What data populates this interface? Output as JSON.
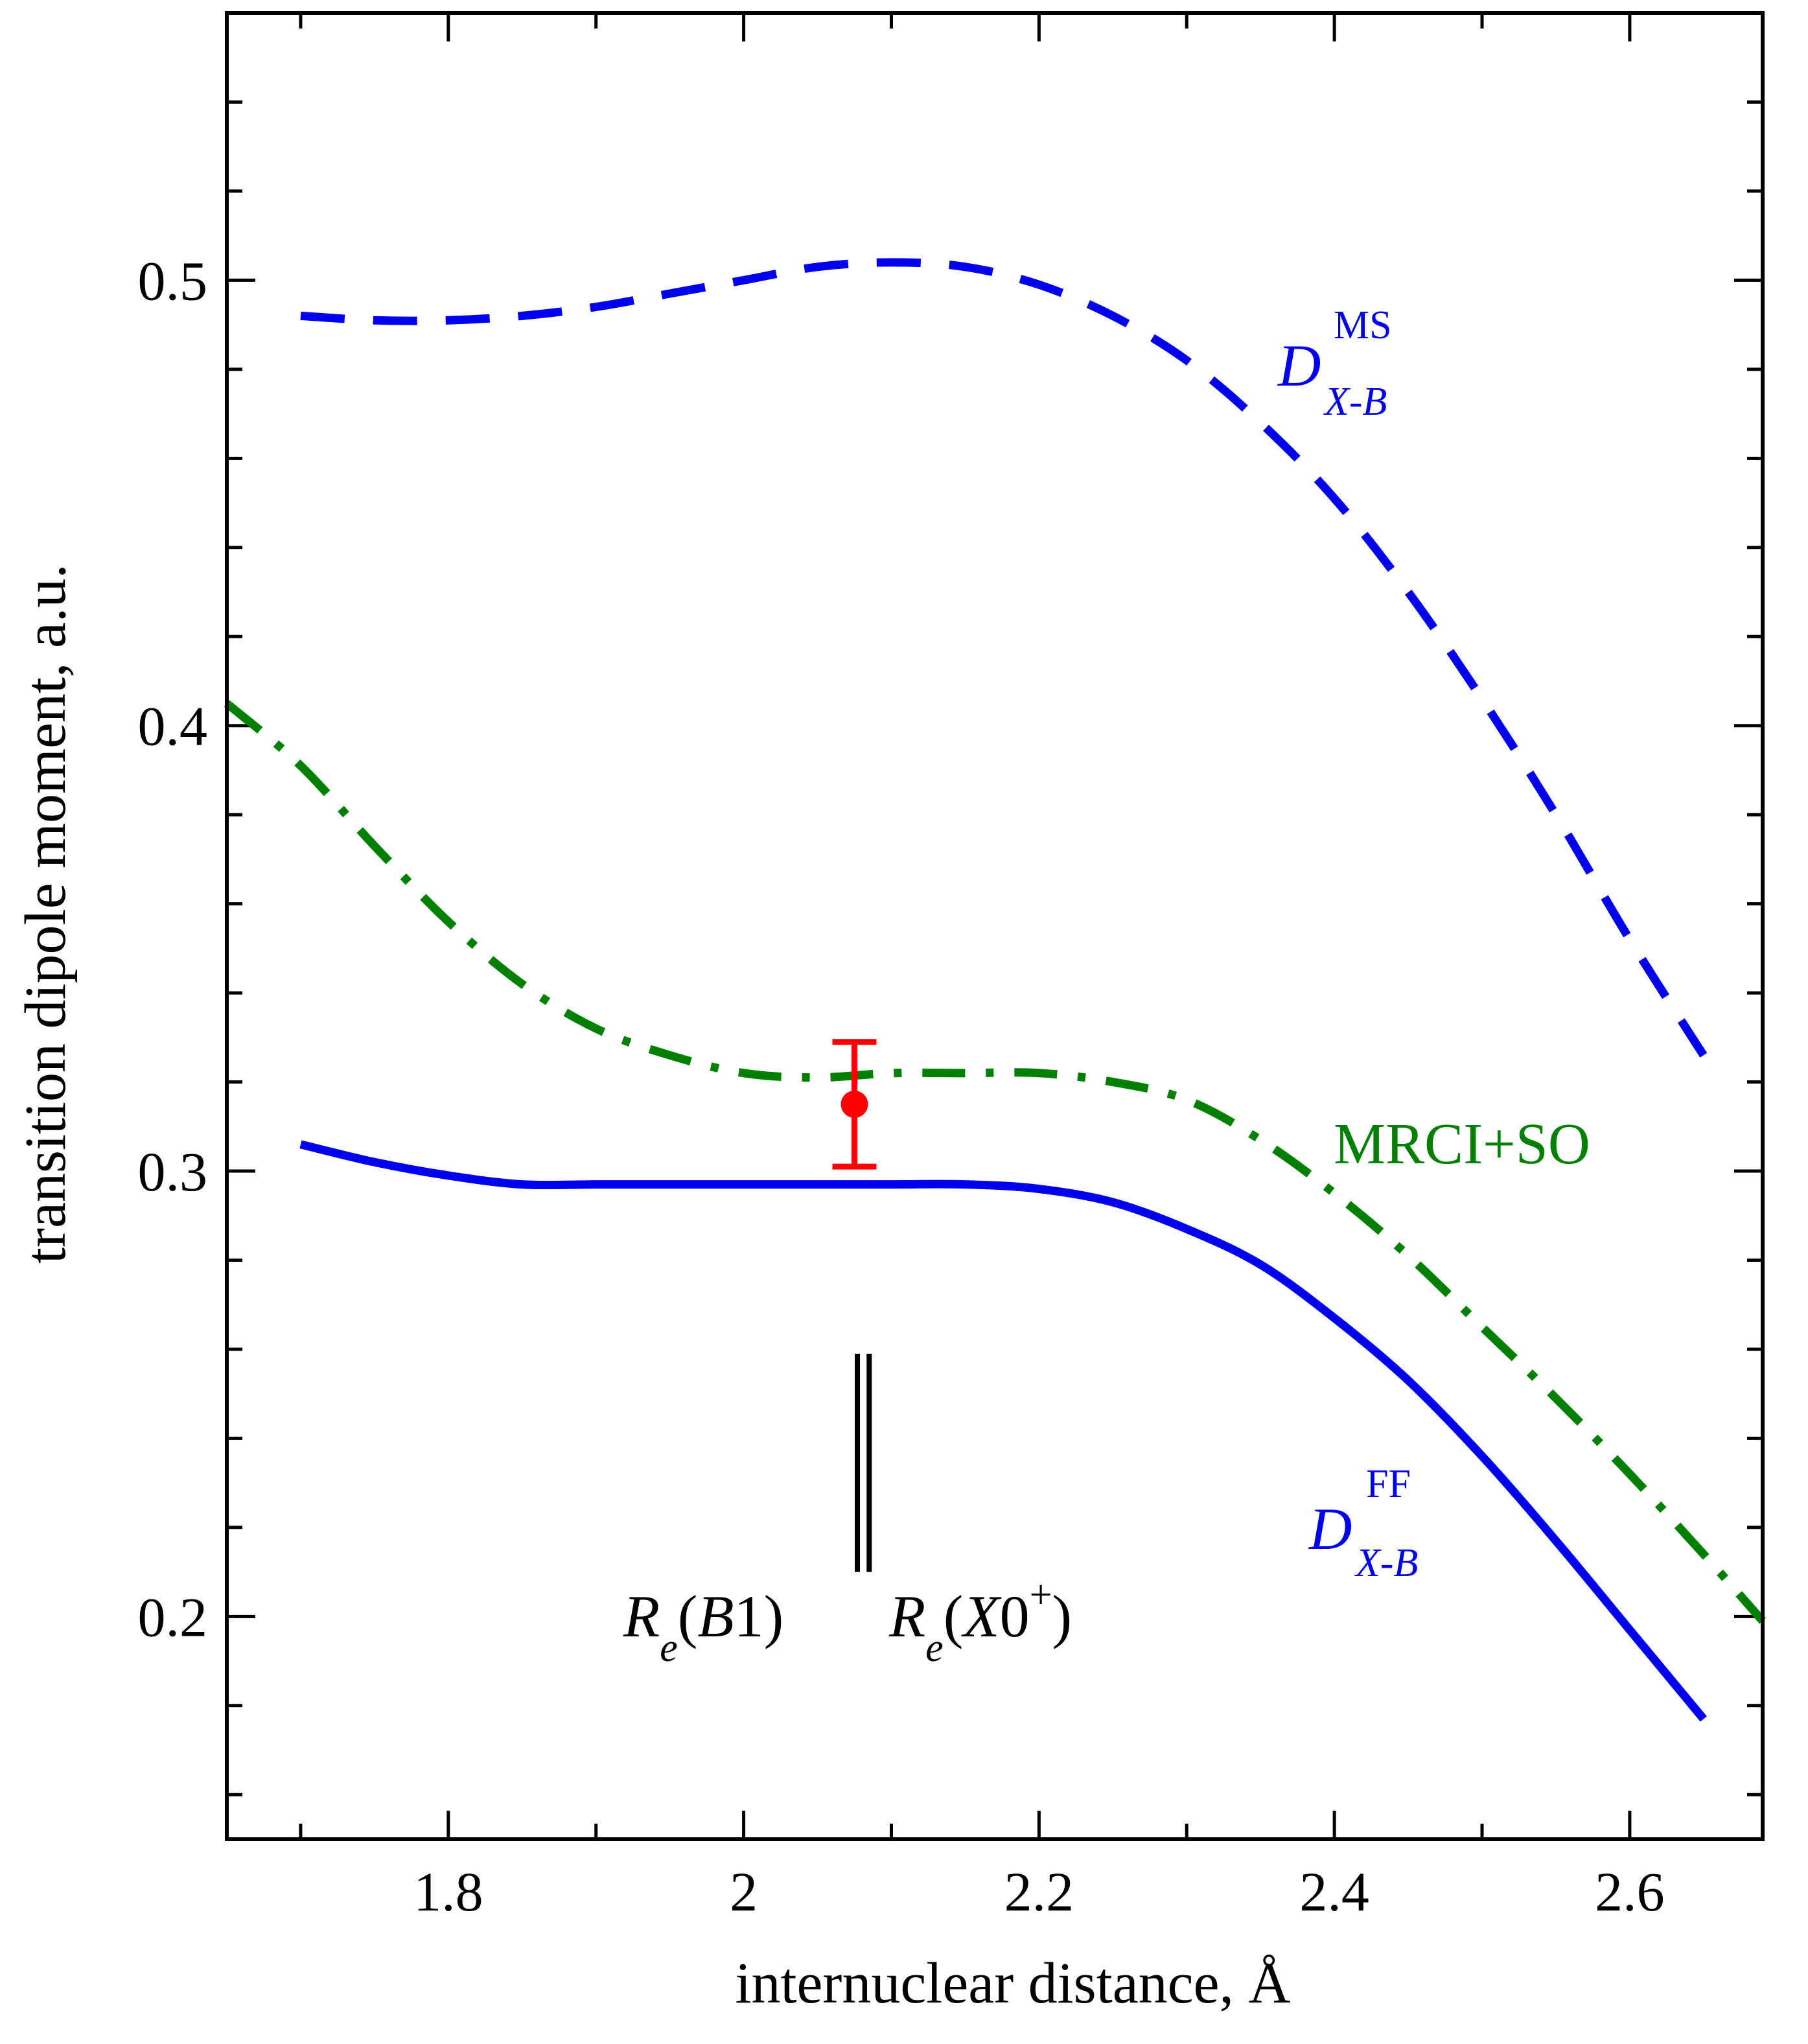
{
  "chart_data": {
    "type": "line",
    "xlabel": "internuclear distance, Å",
    "ylabel": "transition dipole moment, a.u.",
    "xlim": [
      1.65,
      2.69
    ],
    "ylim": [
      0.15,
      0.56
    ],
    "x_ticks": [
      1.8,
      2.0,
      2.2,
      2.4,
      2.6
    ],
    "x_tick_labels": [
      "1.8",
      "2",
      "2.2",
      "2.4",
      "2.6"
    ],
    "x_minor_step": 0.1,
    "y_ticks": [
      0.2,
      0.3,
      0.4,
      0.5
    ],
    "y_tick_labels": [
      "0.2",
      "0.3",
      "0.4",
      "0.5"
    ],
    "y_minor_step": 0.02,
    "series": [
      {
        "name": "D_X-B^MS",
        "label_main": "D",
        "label_sup": "MS",
        "label_sub": "X-B",
        "style": "dashed",
        "color": "#0000ee",
        "x": [
          1.7,
          1.75,
          1.8,
          1.85,
          1.9,
          1.95,
          2.0,
          2.05,
          2.1,
          2.15,
          2.2,
          2.25,
          2.3,
          2.35,
          2.4,
          2.45,
          2.5,
          2.55,
          2.6,
          2.65
        ],
        "y": [
          0.492,
          0.491,
          0.491,
          0.492,
          0.494,
          0.497,
          0.5,
          0.503,
          0.504,
          0.503,
          0.499,
          0.492,
          0.482,
          0.468,
          0.451,
          0.43,
          0.406,
          0.38,
          0.352,
          0.326
        ]
      },
      {
        "name": "MRCI+SO",
        "label_main": "MRCI+SO",
        "style": "dashdot",
        "color": "#008000",
        "x": [
          1.65,
          1.7,
          1.75,
          1.8,
          1.85,
          1.9,
          1.95,
          2.0,
          2.05,
          2.1,
          2.15,
          2.2,
          2.25,
          2.3,
          2.35,
          2.4,
          2.45,
          2.5,
          2.55,
          2.6,
          2.65,
          2.69
        ],
        "y": [
          0.405,
          0.391,
          0.373,
          0.356,
          0.342,
          0.332,
          0.326,
          0.322,
          0.321,
          0.322,
          0.322,
          0.322,
          0.32,
          0.316,
          0.307,
          0.295,
          0.281,
          0.265,
          0.249,
          0.232,
          0.214,
          0.199
        ]
      },
      {
        "name": "D_X-B^FF",
        "label_main": "D",
        "label_sup": "FF",
        "label_sub": "X-B",
        "style": "solid",
        "color": "#0000ee",
        "x": [
          1.7,
          1.75,
          1.8,
          1.85,
          1.9,
          1.95,
          2.0,
          2.05,
          2.1,
          2.15,
          2.2,
          2.25,
          2.3,
          2.35,
          2.4,
          2.45,
          2.5,
          2.55,
          2.6,
          2.65
        ],
        "y": [
          0.306,
          0.302,
          0.299,
          0.297,
          0.297,
          0.297,
          0.297,
          0.297,
          0.297,
          0.297,
          0.296,
          0.293,
          0.287,
          0.279,
          0.267,
          0.253,
          0.236,
          0.217,
          0.197,
          0.177
        ]
      }
    ],
    "error_point": {
      "x": 2.075,
      "y": 0.315,
      "y_low": 0.301,
      "y_high": 0.329,
      "color": "#ff0000"
    },
    "markers": [
      {
        "x": 2.077,
        "y_low": 0.21,
        "y_high": 0.259,
        "label": "R_e(B1)"
      },
      {
        "x": 2.085,
        "y_low": 0.21,
        "y_high": 0.259,
        "label": "R_e(X0+)"
      }
    ],
    "annotations": {
      "ms_label": {
        "main": "D",
        "sup": "MS",
        "sub": "X-B"
      },
      "mrci_label": "MRCI+SO",
      "ff_label": {
        "main": "D",
        "sup": "FF",
        "sub": "X-B"
      },
      "re_b1": {
        "R": "R",
        "e": "e",
        "open": "(",
        "state": "B",
        "num": "1",
        "close": ")"
      },
      "re_x0": {
        "R": "R",
        "e": "e",
        "open": "(",
        "state": "X",
        "num": "0",
        "sup": "+",
        "close": ")"
      }
    }
  }
}
